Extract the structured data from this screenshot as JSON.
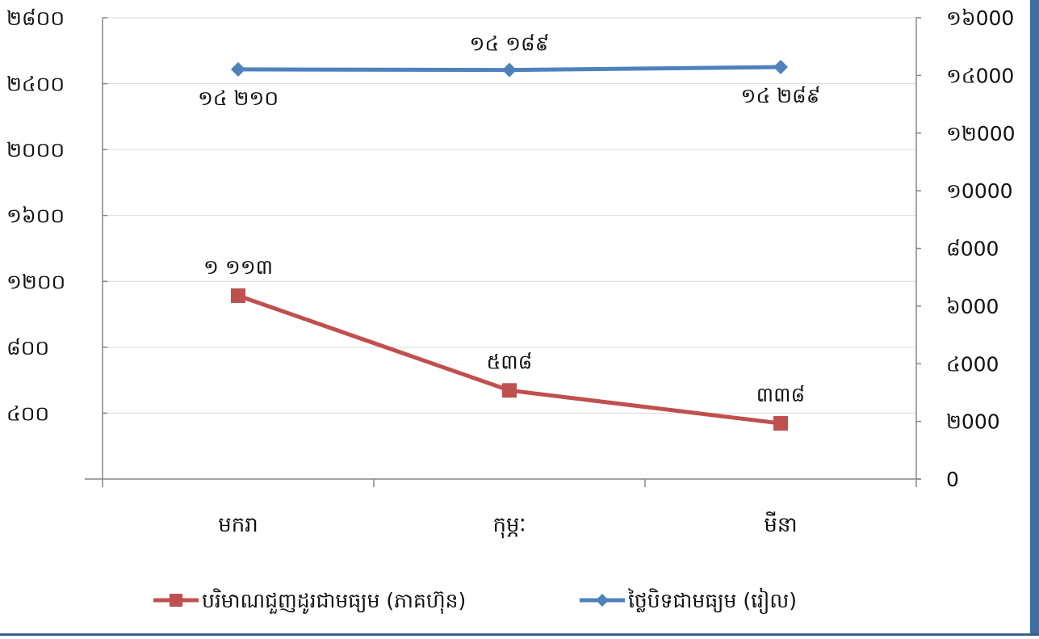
{
  "colors": {
    "volume": "#c0504d",
    "price": "#4f81bd",
    "axis": "#868686",
    "gridline": "#d9d9d9",
    "frame_right": "#3a6ea5",
    "frame_bottom": "#3a5f8a"
  },
  "chart_data": {
    "type": "line",
    "categories": [
      "មករា",
      "កុម្ភៈ",
      "មីនា"
    ],
    "series": [
      {
        "name": "បរិមាណជួញដូរជាមធ្យម (ភាគហ៊ុន)",
        "axis": "left",
        "values": [
          1113,
          538,
          338
        ],
        "data_labels": [
          "១ ១១៣",
          "៥៣៨",
          "៣៣៨"
        ],
        "marker": "square",
        "color": "#c0504d"
      },
      {
        "name": "ថ្លៃបិទជាមធ្យម (រៀល)",
        "axis": "right",
        "values": [
          14210,
          14189,
          14289
        ],
        "data_labels": [
          "១៤ ២១០",
          "១៤ ១៨៩",
          "១៤ ២៨៩"
        ],
        "marker": "diamond",
        "color": "#4f81bd"
      }
    ],
    "y_left": {
      "ylim": [
        0,
        2800
      ],
      "ticks": [
        400,
        800,
        1200,
        1600,
        2000,
        2400,
        2800
      ],
      "tick_labels": [
        "៤០០",
        "៨០០",
        "១២០០",
        "១៦០០",
        "២០០០",
        "២៤០០",
        "២៨០០"
      ]
    },
    "y_right": {
      "ylim": [
        0,
        16000
      ],
      "ticks": [
        0,
        2000,
        4000,
        6000,
        8000,
        10000,
        12000,
        14000,
        16000
      ],
      "tick_labels": [
        "0",
        "២000",
        "៤000",
        "៦000",
        "៨000",
        "១0000",
        "១២000",
        "១៤000",
        "១៦000"
      ]
    },
    "grid": true,
    "legend_position": "bottom"
  }
}
